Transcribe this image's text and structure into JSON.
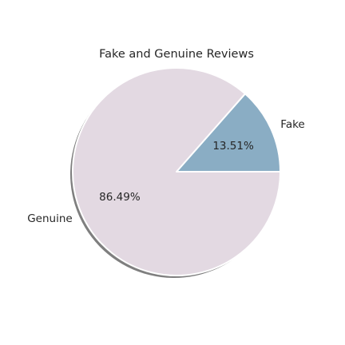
{
  "chart_data": {
    "type": "pie",
    "title": "Fake and Genuine Reviews",
    "slices": [
      {
        "label": "Fake",
        "value": 13.51,
        "pct_label": "13.51%",
        "color": "#8aadc4",
        "explode": 0.0
      },
      {
        "label": "Genuine",
        "value": 86.49,
        "pct_label": "86.49%",
        "color": "#e3d9e2",
        "explode": 0.0
      }
    ],
    "start_angle_deg": 0,
    "direction": "counterclockwise",
    "shadow": true,
    "wedge_edge_color": "#ffffff"
  }
}
